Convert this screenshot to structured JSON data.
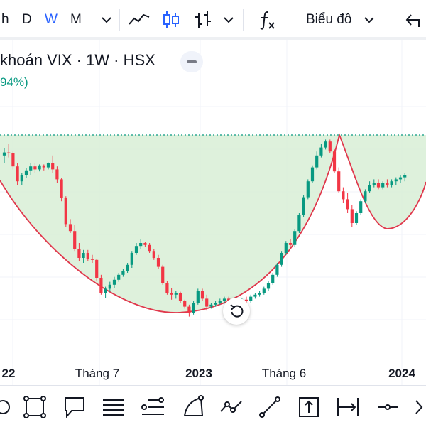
{
  "toolbar": {
    "intervals": [
      "h",
      "D",
      "W",
      "M"
    ],
    "active_interval": "W",
    "chart_menu_label": "Biểu đồ",
    "icons": [
      "chevron-down-icon",
      "line-chart-icon",
      "candlestick-icon",
      "bar-chart-icon",
      "chevron-down-icon",
      "indicators-fx-icon",
      "chevron-down-icon",
      "undo-icon"
    ]
  },
  "legend": {
    "title": "khoán VIX · 1W · HSX",
    "change": "94%)"
  },
  "time_axis": {
    "labels": [
      "22",
      "Tháng 7",
      "2023",
      "Tháng 6",
      "2024"
    ],
    "bold": [
      true,
      false,
      true,
      false,
      true
    ]
  },
  "colors": {
    "up": "#089981",
    "down": "#f23645",
    "fill": "#d8eed6",
    "curve": "#e0384c",
    "accent": "#2962ff"
  },
  "bottom_toolbar": {
    "tools": [
      "lasso-icon",
      "rectangle-icon",
      "callout-icon",
      "parallel-channel-icon",
      "fib-retracement-icon",
      "arc-icon",
      "path-icon",
      "trend-line-icon",
      "forecast-icon",
      "date-range-icon",
      "horizontal-ray-icon",
      "more-icon"
    ]
  },
  "chart_data": {
    "type": "candlestick",
    "series": [
      {
        "o": 48,
        "h": 55,
        "l": 40,
        "c": 51
      },
      {
        "o": 51,
        "h": 60,
        "l": 46,
        "c": 50
      },
      {
        "o": 50,
        "h": 52,
        "l": 34,
        "c": 37
      },
      {
        "o": 37,
        "h": 40,
        "l": 18,
        "c": 22
      },
      {
        "o": 22,
        "h": 30,
        "l": 18,
        "c": 28
      },
      {
        "o": 28,
        "h": 35,
        "l": 25,
        "c": 33
      },
      {
        "o": 33,
        "h": 40,
        "l": 28,
        "c": 37
      },
      {
        "o": 37,
        "h": 40,
        "l": 30,
        "c": 34
      },
      {
        "o": 34,
        "h": 39,
        "l": 32,
        "c": 38
      },
      {
        "o": 38,
        "h": 39,
        "l": 33,
        "c": 36
      },
      {
        "o": 36,
        "h": 41,
        "l": 34,
        "c": 40
      },
      {
        "o": 40,
        "h": 48,
        "l": 30,
        "c": 34
      },
      {
        "o": 34,
        "h": 37,
        "l": 20,
        "c": 24
      },
      {
        "o": 24,
        "h": 25,
        "l": 2,
        "c": 5
      },
      {
        "o": 5,
        "h": 7,
        "l": -24,
        "c": -21
      },
      {
        "o": -21,
        "h": -16,
        "l": -30,
        "c": -28
      },
      {
        "o": -28,
        "h": -22,
        "l": -48,
        "c": -46
      },
      {
        "o": -46,
        "h": -40,
        "l": -58,
        "c": -55
      },
      {
        "o": -55,
        "h": -47,
        "l": -60,
        "c": -50
      },
      {
        "o": -50,
        "h": -47,
        "l": -58,
        "c": -56
      },
      {
        "o": -56,
        "h": -52,
        "l": -60,
        "c": -57
      },
      {
        "o": -57,
        "h": -56,
        "l": -78,
        "c": -75
      },
      {
        "o": -75,
        "h": -72,
        "l": -92,
        "c": -90
      },
      {
        "o": -90,
        "h": -84,
        "l": -95,
        "c": -86
      },
      {
        "o": -86,
        "h": -79,
        "l": -89,
        "c": -82
      },
      {
        "o": -82,
        "h": -74,
        "l": -85,
        "c": -77
      },
      {
        "o": -77,
        "h": -70,
        "l": -79,
        "c": -72
      },
      {
        "o": -72,
        "h": -66,
        "l": -74,
        "c": -68
      },
      {
        "o": -68,
        "h": -60,
        "l": -70,
        "c": -62
      },
      {
        "o": -62,
        "h": -48,
        "l": -65,
        "c": -50
      },
      {
        "o": -50,
        "h": -40,
        "l": -52,
        "c": -43
      },
      {
        "o": -43,
        "h": -36,
        "l": -46,
        "c": -40
      },
      {
        "o": -40,
        "h": -39,
        "l": -44,
        "c": -42
      },
      {
        "o": -42,
        "h": -40,
        "l": -50,
        "c": -48
      },
      {
        "o": -48,
        "h": -46,
        "l": -57,
        "c": -55
      },
      {
        "o": -55,
        "h": -52,
        "l": -66,
        "c": -64
      },
      {
        "o": -64,
        "h": -62,
        "l": -82,
        "c": -80
      },
      {
        "o": -80,
        "h": -78,
        "l": -92,
        "c": -90
      },
      {
        "o": -90,
        "h": -85,
        "l": -97,
        "c": -92
      },
      {
        "o": -92,
        "h": -88,
        "l": -96,
        "c": -90
      },
      {
        "o": -90,
        "h": -89,
        "l": -100,
        "c": -98
      },
      {
        "o": -98,
        "h": -97,
        "l": -106,
        "c": -104
      },
      {
        "o": -104,
        "h": -102,
        "l": -114,
        "c": -110
      },
      {
        "o": -110,
        "h": -98,
        "l": -112,
        "c": -100
      },
      {
        "o": -100,
        "h": -86,
        "l": -102,
        "c": -88
      },
      {
        "o": -88,
        "h": -86,
        "l": -98,
        "c": -96
      },
      {
        "o": -96,
        "h": -92,
        "l": -108,
        "c": -104
      },
      {
        "o": -104,
        "h": -100,
        "l": -106,
        "c": -102
      },
      {
        "o": -102,
        "h": -98,
        "l": -104,
        "c": -100
      },
      {
        "o": -100,
        "h": -96,
        "l": -102,
        "c": -98
      },
      {
        "o": -98,
        "h": -94,
        "l": -101,
        "c": -96
      },
      {
        "o": -96,
        "h": -94,
        "l": -102,
        "c": -100
      },
      {
        "o": -100,
        "h": -98,
        "l": -104,
        "c": -102
      },
      {
        "o": -102,
        "h": -98,
        "l": -105,
        "c": -100
      },
      {
        "o": -100,
        "h": -95,
        "l": -102,
        "c": -97
      },
      {
        "o": -97,
        "h": -94,
        "l": -100,
        "c": -98
      },
      {
        "o": -98,
        "h": -92,
        "l": -100,
        "c": -94
      },
      {
        "o": -94,
        "h": -90,
        "l": -96,
        "c": -92
      },
      {
        "o": -92,
        "h": -88,
        "l": -94,
        "c": -90
      },
      {
        "o": -90,
        "h": -84,
        "l": -92,
        "c": -86
      },
      {
        "o": -86,
        "h": -78,
        "l": -88,
        "c": -80
      },
      {
        "o": -80,
        "h": -70,
        "l": -82,
        "c": -72
      },
      {
        "o": -72,
        "h": -60,
        "l": -74,
        "c": -62
      },
      {
        "o": -62,
        "h": -48,
        "l": -64,
        "c": -50
      },
      {
        "o": -50,
        "h": -38,
        "l": -52,
        "c": -40
      },
      {
        "o": -40,
        "h": -36,
        "l": -44,
        "c": -42
      },
      {
        "o": -42,
        "h": -26,
        "l": -44,
        "c": -28
      },
      {
        "o": -28,
        "h": -10,
        "l": -30,
        "c": -12
      },
      {
        "o": -12,
        "h": 8,
        "l": -14,
        "c": 6
      },
      {
        "o": 6,
        "h": 24,
        "l": 4,
        "c": 22
      },
      {
        "o": 22,
        "h": 38,
        "l": 20,
        "c": 36
      },
      {
        "o": 36,
        "h": 52,
        "l": 34,
        "c": 48
      },
      {
        "o": 48,
        "h": 60,
        "l": 46,
        "c": 56
      },
      {
        "o": 56,
        "h": 64,
        "l": 54,
        "c": 62
      },
      {
        "o": 62,
        "h": 64,
        "l": 50,
        "c": 52
      },
      {
        "o": 52,
        "h": 54,
        "l": 30,
        "c": 32
      },
      {
        "o": 32,
        "h": 36,
        "l": 10,
        "c": 12
      },
      {
        "o": 12,
        "h": 16,
        "l": 0,
        "c": 4
      },
      {
        "o": 4,
        "h": 10,
        "l": -10,
        "c": -6
      },
      {
        "o": -6,
        "h": -2,
        "l": -24,
        "c": -20
      },
      {
        "o": -20,
        "h": -8,
        "l": -22,
        "c": -10
      },
      {
        "o": -10,
        "h": 4,
        "l": -12,
        "c": 2
      },
      {
        "o": 2,
        "h": 14,
        "l": 0,
        "c": 12
      },
      {
        "o": 12,
        "h": 22,
        "l": 10,
        "c": 18
      },
      {
        "o": 18,
        "h": 24,
        "l": 16,
        "c": 20
      },
      {
        "o": 20,
        "h": 24,
        "l": 14,
        "c": 16
      },
      {
        "o": 16,
        "h": 22,
        "l": 14,
        "c": 20
      },
      {
        "o": 20,
        "h": 24,
        "l": 16,
        "c": 18
      },
      {
        "o": 18,
        "h": 24,
        "l": 16,
        "c": 22
      },
      {
        "o": 22,
        "h": 26,
        "l": 18,
        "c": 24
      },
      {
        "o": 24,
        "h": 28,
        "l": 20,
        "c": 26
      },
      {
        "o": 26,
        "h": 30,
        "l": 22,
        "c": 28
      }
    ]
  }
}
